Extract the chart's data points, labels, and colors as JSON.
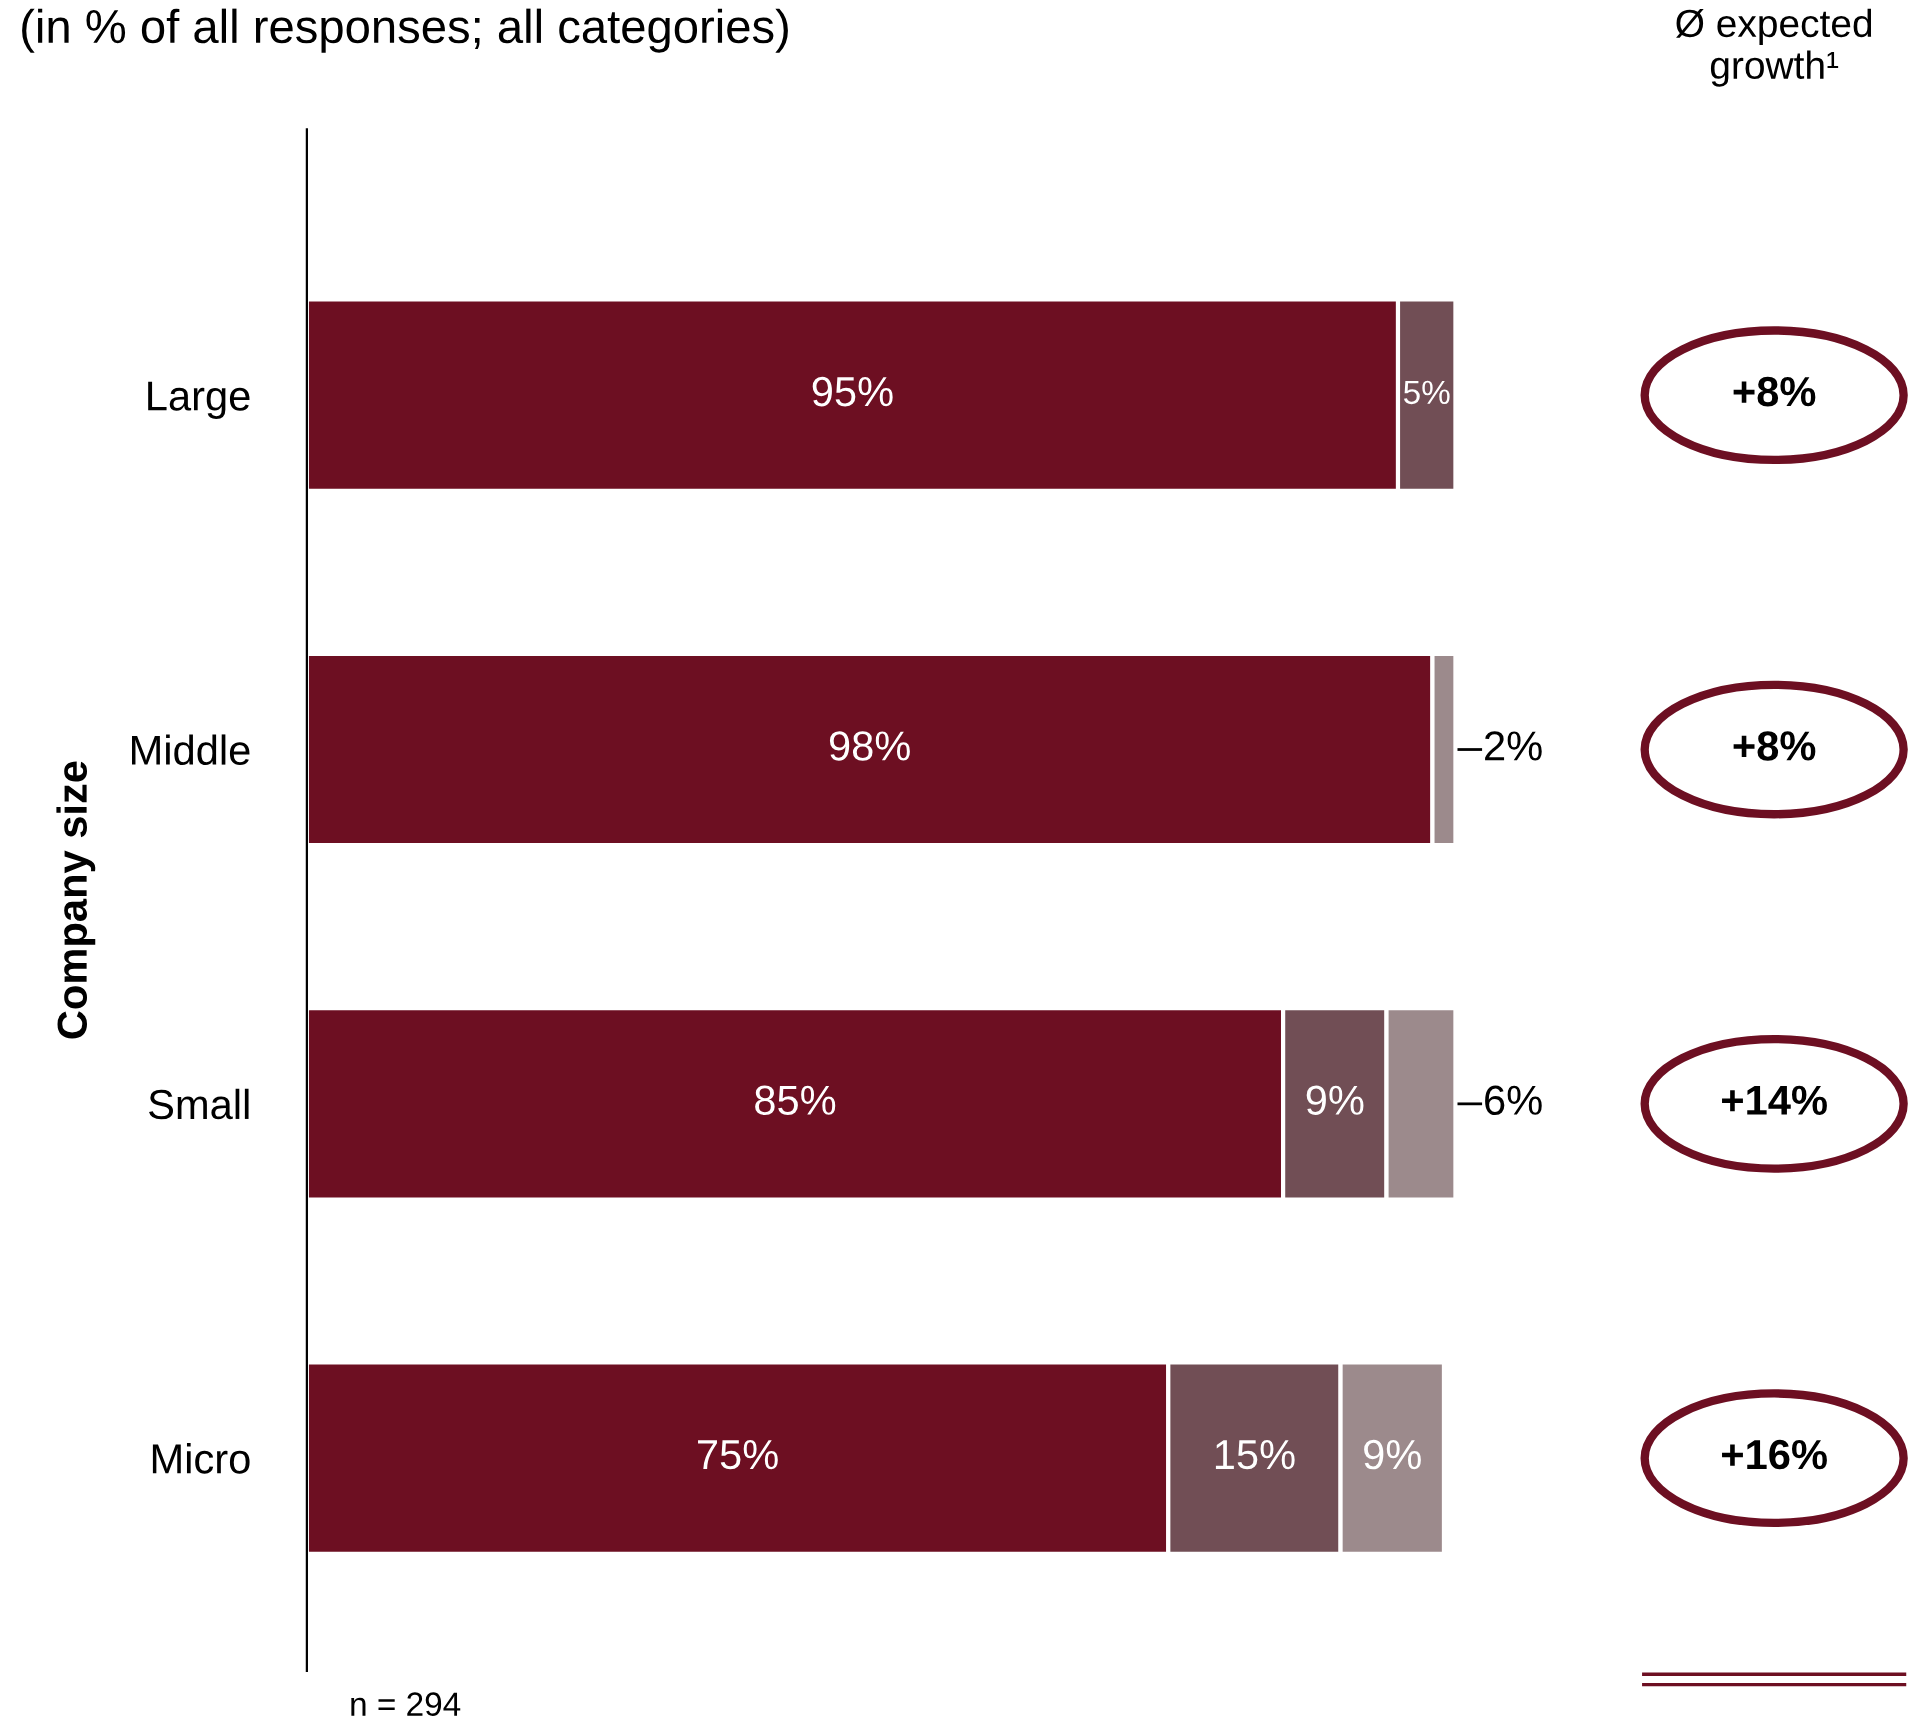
{
  "chart_data": {
    "type": "bar",
    "orientation": "horizontal",
    "stacked": true,
    "subtitle": "(in % of all responses; all categories)",
    "ylabel": "Company size",
    "categories": [
      "Large",
      "Middle",
      "Small",
      "Micro"
    ],
    "series": [
      {
        "color": "#6d0f22",
        "values": [
          95,
          98,
          85,
          75
        ],
        "value_labels": [
          "95%",
          "98%",
          "85%",
          "75%"
        ]
      },
      {
        "color": "#714e55",
        "values": [
          5,
          null,
          9,
          15
        ],
        "value_labels": [
          "5%",
          null,
          "9%",
          "15%"
        ]
      },
      {
        "color": "#9c8a8c",
        "values": [
          null,
          2,
          6,
          9
        ],
        "value_labels": [
          null,
          "2%",
          "6%",
          "9%"
        ]
      }
    ],
    "annotations": [
      "Ø expected growth¹",
      "+8%",
      "+8%",
      "+14%",
      "+16%",
      "n = 294"
    ],
    "legend": false,
    "grid": false
  }
}
